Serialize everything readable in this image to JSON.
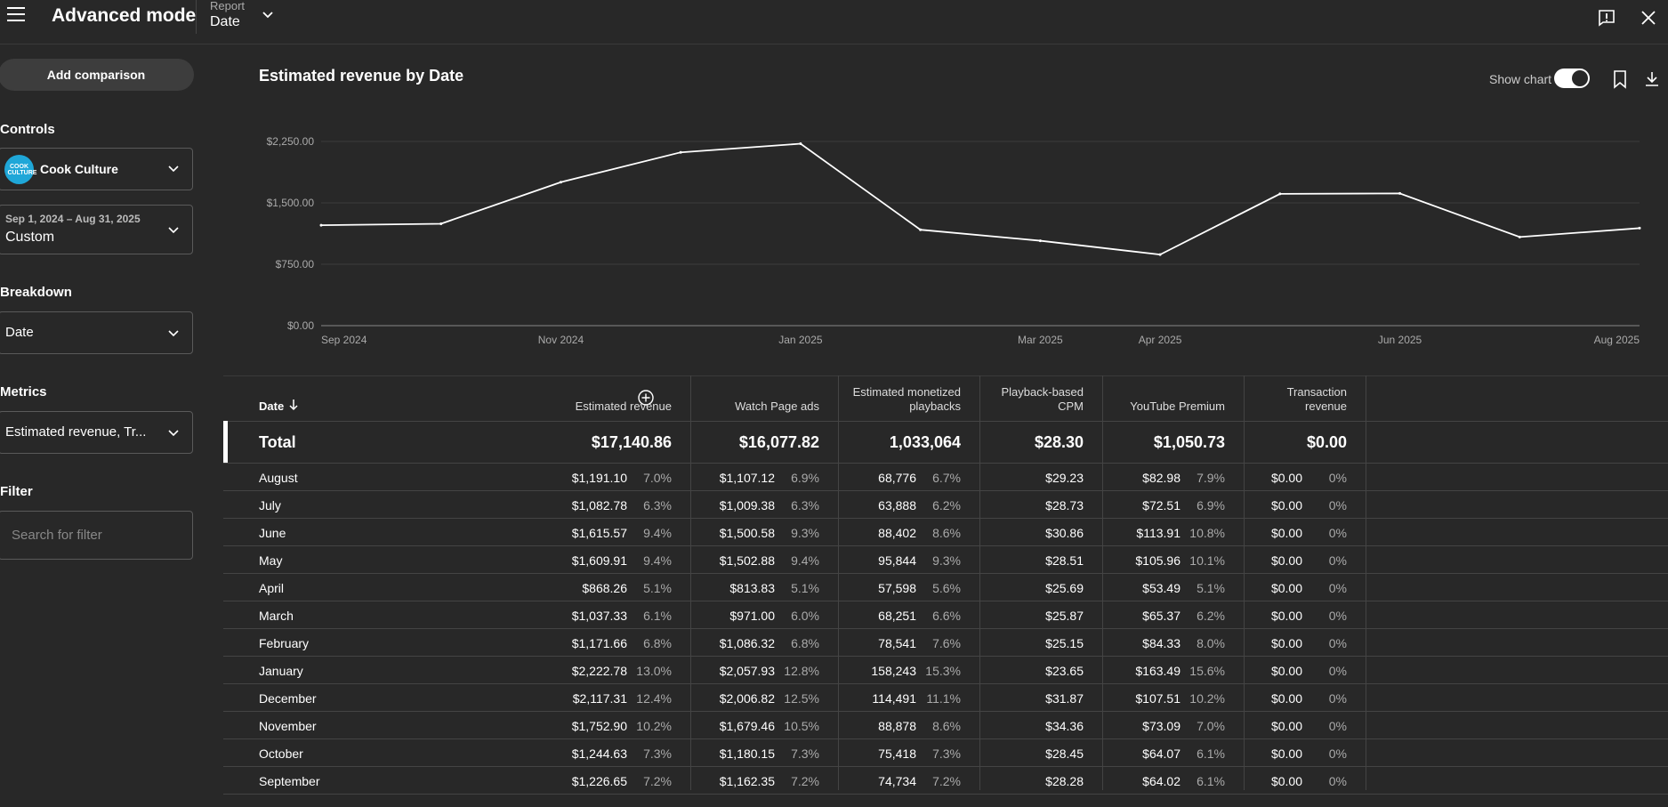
{
  "header": {
    "title": "Advanced mode",
    "report_label": "Report",
    "report_value": "Date"
  },
  "sidebar": {
    "add_comparison": "Add comparison",
    "controls_label": "Controls",
    "channel": {
      "name": "Cook Culture",
      "avatar_text": "COOK CULTURE"
    },
    "date_range": {
      "range": "Sep 1, 2024 – Aug 31, 2025",
      "label": "Custom"
    },
    "breakdown_label": "Breakdown",
    "breakdown_value": "Date",
    "metrics_label": "Metrics",
    "metrics_value": "Estimated revenue, Tr...",
    "filter_label": "Filter",
    "filter_placeholder": "Search for filter"
  },
  "main": {
    "chart_title": "Estimated revenue by Date",
    "show_chart_label": "Show chart",
    "show_chart_on": true
  },
  "chart_data": {
    "type": "line",
    "x": [
      "Sep 2024",
      "Oct 2024",
      "Nov 2024",
      "Dec 2024",
      "Jan 2025",
      "Feb 2025",
      "Mar 2025",
      "Apr 2025",
      "May 2025",
      "Jun 2025",
      "Jul 2025",
      "Aug 2025"
    ],
    "values": [
      1226.65,
      1244.63,
      1752.9,
      2117.31,
      2222.78,
      1171.66,
      1037.33,
      868.26,
      1609.91,
      1615.57,
      1082.78,
      1191.1
    ],
    "ytick_labels": [
      "$0.00",
      "$750.00",
      "$1,500.00",
      "$2,250.00"
    ],
    "ytick_values": [
      0,
      750,
      1500,
      2250
    ],
    "xtick_labels": [
      "Sep 2024",
      "Nov 2024",
      "Jan 2025",
      "Mar 2025",
      "Apr 2025",
      "Jun 2025",
      "Aug 2025"
    ],
    "xtick_values": [
      "2024-09-01",
      "2024-11-01",
      "2025-01-01",
      "2025-03-01",
      "2025-04-01",
      "2025-06-01",
      "2025-08-01"
    ],
    "ylim": [
      0,
      2250
    ],
    "grid": true,
    "line_color": "#ffffff"
  },
  "table": {
    "date_header": "Date",
    "headers": [
      {
        "line1": "",
        "line2": "Estimated revenue"
      },
      {
        "line1": "",
        "line2": "Watch Page ads"
      },
      {
        "line1": "Estimated monetized",
        "line2": "playbacks"
      },
      {
        "line1": "Playback-based",
        "line2": "CPM"
      },
      {
        "line1": "",
        "line2": "YouTube Premium"
      },
      {
        "line1": "Transaction",
        "line2": "revenue"
      }
    ],
    "total": {
      "label": "Total",
      "values": [
        "$17,140.86",
        "$16,077.82",
        "1,033,064",
        "$28.30",
        "$1,050.73",
        "$0.00"
      ]
    },
    "rows": [
      {
        "date": "August",
        "c": [
          [
            "$1,191.10",
            "7.0%"
          ],
          [
            "$1,107.12",
            "6.9%"
          ],
          [
            "68,776",
            "6.7%"
          ],
          [
            "$29.23",
            ""
          ],
          [
            "$82.98",
            "7.9%"
          ],
          [
            "$0.00",
            "0%"
          ]
        ]
      },
      {
        "date": "July",
        "c": [
          [
            "$1,082.78",
            "6.3%"
          ],
          [
            "$1,009.38",
            "6.3%"
          ],
          [
            "63,888",
            "6.2%"
          ],
          [
            "$28.73",
            ""
          ],
          [
            "$72.51",
            "6.9%"
          ],
          [
            "$0.00",
            "0%"
          ]
        ]
      },
      {
        "date": "June",
        "c": [
          [
            "$1,615.57",
            "9.4%"
          ],
          [
            "$1,500.58",
            "9.3%"
          ],
          [
            "88,402",
            "8.6%"
          ],
          [
            "$30.86",
            ""
          ],
          [
            "$113.91",
            "10.8%"
          ],
          [
            "$0.00",
            "0%"
          ]
        ]
      },
      {
        "date": "May",
        "c": [
          [
            "$1,609.91",
            "9.4%"
          ],
          [
            "$1,502.88",
            "9.4%"
          ],
          [
            "95,844",
            "9.3%"
          ],
          [
            "$28.51",
            ""
          ],
          [
            "$105.96",
            "10.1%"
          ],
          [
            "$0.00",
            "0%"
          ]
        ]
      },
      {
        "date": "April",
        "c": [
          [
            "$868.26",
            "5.1%"
          ],
          [
            "$813.83",
            "5.1%"
          ],
          [
            "57,598",
            "5.6%"
          ],
          [
            "$25.69",
            ""
          ],
          [
            "$53.49",
            "5.1%"
          ],
          [
            "$0.00",
            "0%"
          ]
        ]
      },
      {
        "date": "March",
        "c": [
          [
            "$1,037.33",
            "6.1%"
          ],
          [
            "$971.00",
            "6.0%"
          ],
          [
            "68,251",
            "6.6%"
          ],
          [
            "$25.87",
            ""
          ],
          [
            "$65.37",
            "6.2%"
          ],
          [
            "$0.00",
            "0%"
          ]
        ]
      },
      {
        "date": "February",
        "c": [
          [
            "$1,171.66",
            "6.8%"
          ],
          [
            "$1,086.32",
            "6.8%"
          ],
          [
            "78,541",
            "7.6%"
          ],
          [
            "$25.15",
            ""
          ],
          [
            "$84.33",
            "8.0%"
          ],
          [
            "$0.00",
            "0%"
          ]
        ]
      },
      {
        "date": "January",
        "c": [
          [
            "$2,222.78",
            "13.0%"
          ],
          [
            "$2,057.93",
            "12.8%"
          ],
          [
            "158,243",
            "15.3%"
          ],
          [
            "$23.65",
            ""
          ],
          [
            "$163.49",
            "15.6%"
          ],
          [
            "$0.00",
            "0%"
          ]
        ]
      },
      {
        "date": "December",
        "c": [
          [
            "$2,117.31",
            "12.4%"
          ],
          [
            "$2,006.82",
            "12.5%"
          ],
          [
            "114,491",
            "11.1%"
          ],
          [
            "$31.87",
            ""
          ],
          [
            "$107.51",
            "10.2%"
          ],
          [
            "$0.00",
            "0%"
          ]
        ]
      },
      {
        "date": "November",
        "c": [
          [
            "$1,752.90",
            "10.2%"
          ],
          [
            "$1,679.46",
            "10.5%"
          ],
          [
            "88,878",
            "8.6%"
          ],
          [
            "$34.36",
            ""
          ],
          [
            "$73.09",
            "7.0%"
          ],
          [
            "$0.00",
            "0%"
          ]
        ]
      },
      {
        "date": "October",
        "c": [
          [
            "$1,244.63",
            "7.3%"
          ],
          [
            "$1,180.15",
            "7.3%"
          ],
          [
            "75,418",
            "7.3%"
          ],
          [
            "$28.45",
            ""
          ],
          [
            "$64.07",
            "6.1%"
          ],
          [
            "$0.00",
            "0%"
          ]
        ]
      },
      {
        "date": "September",
        "c": [
          [
            "$1,226.65",
            "7.2%"
          ],
          [
            "$1,162.35",
            "7.2%"
          ],
          [
            "74,734",
            "7.2%"
          ],
          [
            "$28.28",
            ""
          ],
          [
            "$64.02",
            "6.1%"
          ],
          [
            "$0.00",
            "0%"
          ]
        ]
      }
    ]
  }
}
